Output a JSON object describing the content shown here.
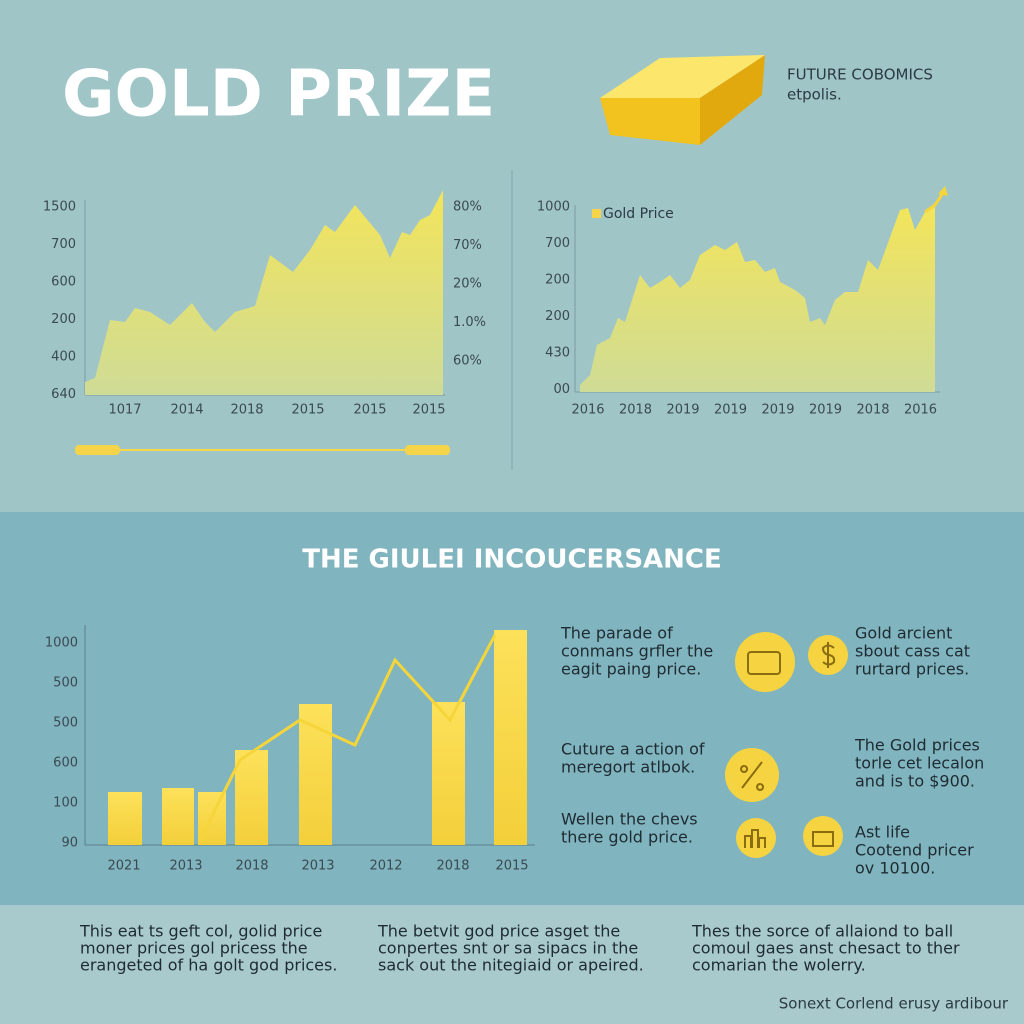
{
  "header": {
    "title": "GOLD PRIZE",
    "tagline": [
      "FUTURE COBOMICS",
      "etpolis."
    ]
  },
  "left_chart": {
    "y_labels": [
      "1500",
      "700",
      "600",
      "200",
      "400",
      "640"
    ],
    "y2_labels": [
      "80%",
      "70%",
      "20%",
      "1.0%",
      "60%"
    ],
    "x_labels": [
      "1017",
      "2014",
      "2018",
      "2015",
      "2015",
      "2015"
    ]
  },
  "right_chart": {
    "legend": "Gold Price",
    "y_labels": [
      "1000",
      "700",
      "200",
      "200",
      "430",
      "00"
    ],
    "x_labels": [
      "2016",
      "2018",
      "2019",
      "2019",
      "2019",
      "2019",
      "2018",
      "2016"
    ]
  },
  "section": {
    "title": "THE GIULEI INCOUCERSANCE"
  },
  "bar_chart": {
    "y_labels": [
      "1000",
      "500",
      "500",
      "600",
      "100",
      "90"
    ],
    "x_labels": [
      "2021",
      "2013",
      "2018",
      "2013",
      "2012",
      "2018",
      "2015"
    ]
  },
  "notes_left": [
    [
      "The  parade of",
      "conmans grfler the",
      "eagit paing price."
    ],
    [
      "Cuture a action of",
      "meregort atlbok."
    ],
    [
      "Wellen the chevs",
      "there gold price."
    ]
  ],
  "notes_right": [
    [
      "Gold arcient",
      "sbout cass cat",
      "rurtard prices."
    ],
    [
      "The Gold prices",
      "torle cet lecalon",
      "and is to $900."
    ],
    [
      "Ast life",
      "Cootend pricer",
      "ov 10100."
    ]
  ],
  "footer": {
    "columns": [
      [
        "This eat ts geft col, golid price",
        "moner prices gol pricess the",
        "erangeted of ha golt god prices."
      ],
      [
        "The betvit god price asget the",
        "conpertes snt or sa sipacs in the",
        "sack out the nitegiaid or apeired."
      ],
      [
        "Thes the sorce of allaiond to ball",
        "comoul gaes anst chesact to ther",
        "comarian the wolerry."
      ]
    ],
    "credit": "Sonext Corlend erusy ardibour"
  }
}
